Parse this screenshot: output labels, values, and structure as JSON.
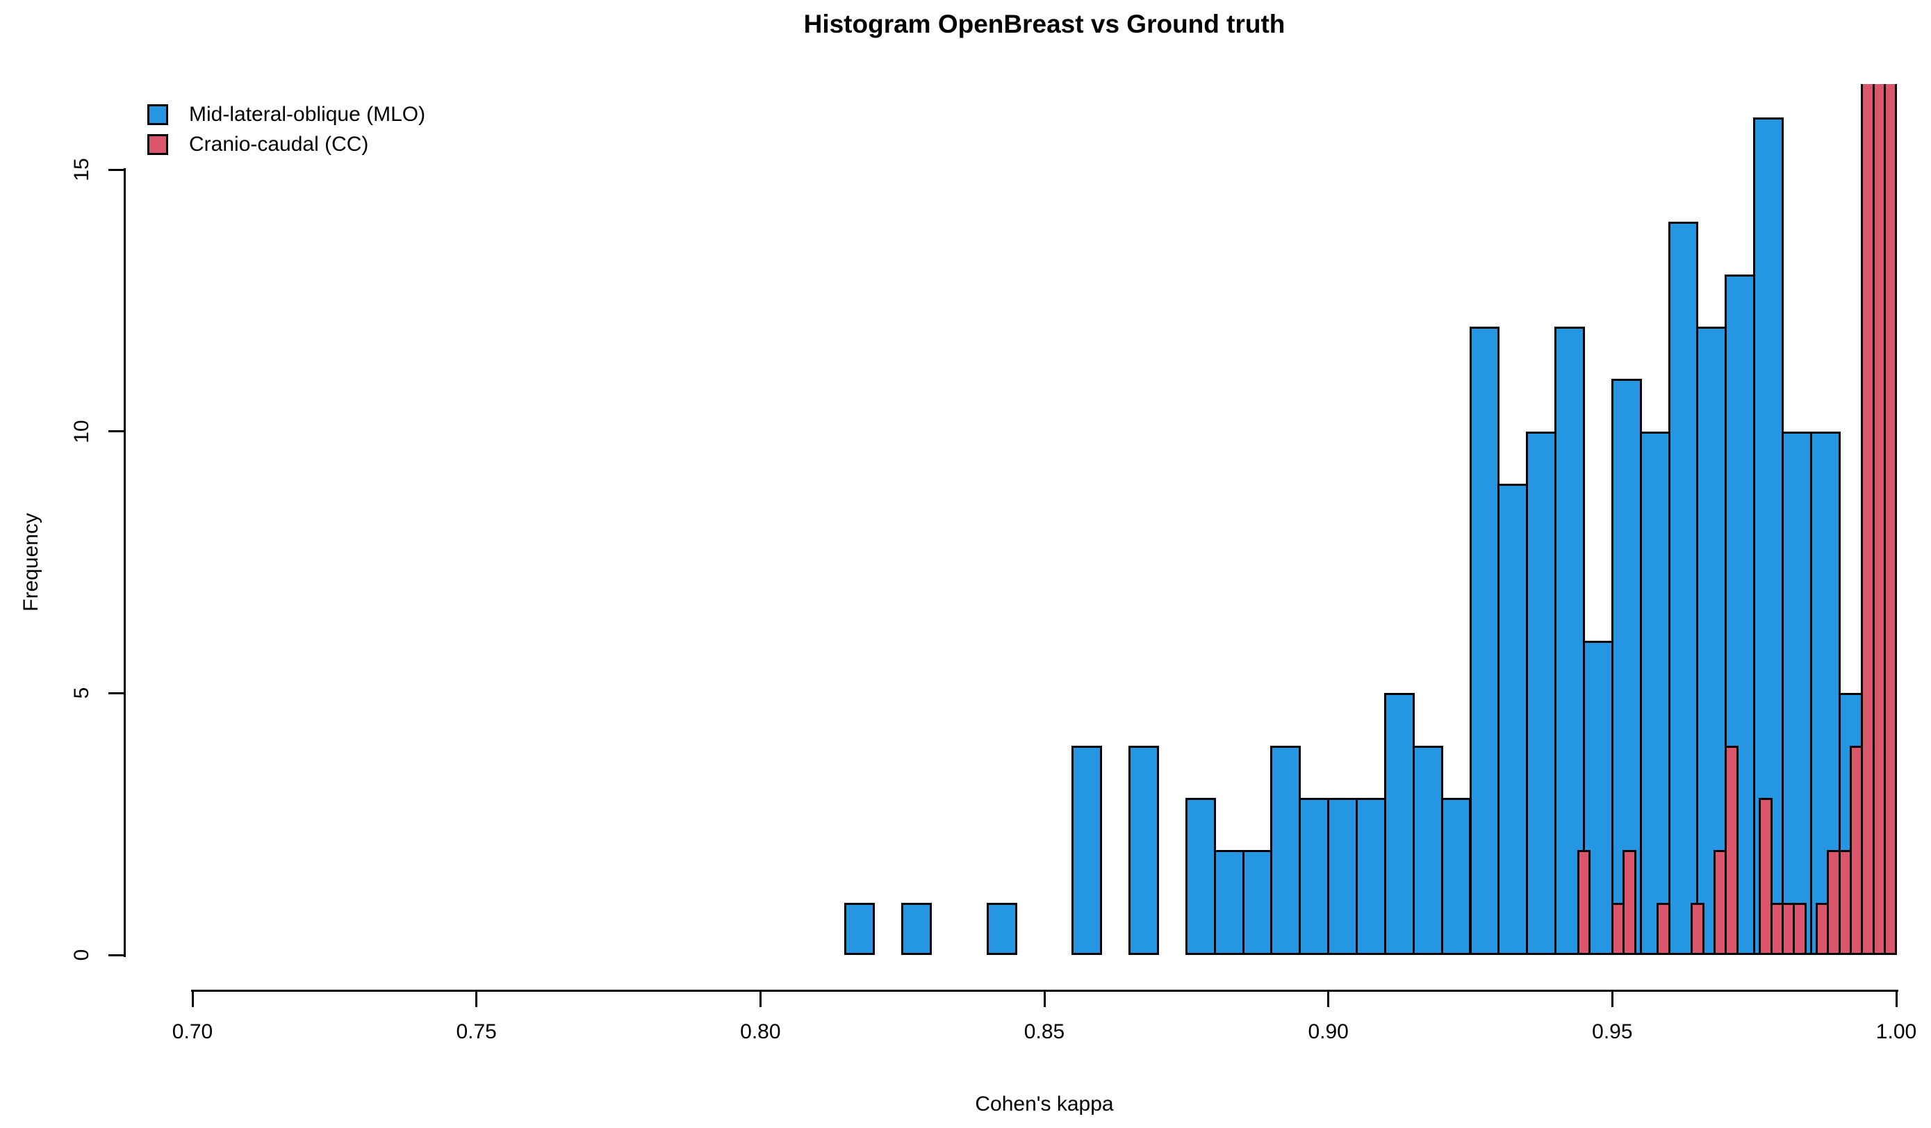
{
  "title": "Histogram OpenBreast vs Ground truth",
  "legend": {
    "items": [
      {
        "label": "Mid-lateral-oblique (MLO)",
        "color": "#2496E2"
      },
      {
        "label": "Cranio-caudal (CC)",
        "color": "#DC566B"
      }
    ]
  },
  "chart_data": {
    "type": "bar",
    "subtype": "histogram-overlay",
    "title": "Histogram OpenBreast vs Ground truth",
    "xlabel": "Cohen's kappa",
    "ylabel": "Frequency",
    "xlim": [
      0.7,
      1.0
    ],
    "ylim": [
      0,
      16.64
    ],
    "xticks": [
      "0.70",
      "0.75",
      "0.80",
      "0.85",
      "0.90",
      "0.95",
      "1.00"
    ],
    "xtick_values": [
      0.7,
      0.75,
      0.8,
      0.85,
      0.9,
      0.95,
      1.0
    ],
    "yticks": [
      "0",
      "5",
      "10",
      "15"
    ],
    "ytick_values": [
      0,
      5,
      10,
      15
    ],
    "grid": false,
    "legend_position": "top-left",
    "bar_outline_color": "#000000",
    "series": [
      {
        "name": "Mid-lateral-oblique (MLO)",
        "color": "#2496E2",
        "bin_width": 0.005,
        "bars": [
          {
            "x": 0.815,
            "f": 1
          },
          {
            "x": 0.825,
            "f": 1
          },
          {
            "x": 0.84,
            "f": 1
          },
          {
            "x": 0.855,
            "f": 4
          },
          {
            "x": 0.865,
            "f": 4
          },
          {
            "x": 0.875,
            "f": 3
          },
          {
            "x": 0.88,
            "f": 2
          },
          {
            "x": 0.885,
            "f": 2
          },
          {
            "x": 0.89,
            "f": 4
          },
          {
            "x": 0.895,
            "f": 3
          },
          {
            "x": 0.9,
            "f": 3
          },
          {
            "x": 0.905,
            "f": 3
          },
          {
            "x": 0.91,
            "f": 5
          },
          {
            "x": 0.915,
            "f": 4
          },
          {
            "x": 0.92,
            "f": 3
          },
          {
            "x": 0.925,
            "f": 12
          },
          {
            "x": 0.93,
            "f": 9
          },
          {
            "x": 0.935,
            "f": 10
          },
          {
            "x": 0.94,
            "f": 12
          },
          {
            "x": 0.945,
            "f": 6
          },
          {
            "x": 0.95,
            "f": 11
          },
          {
            "x": 0.955,
            "f": 10
          },
          {
            "x": 0.96,
            "f": 14
          },
          {
            "x": 0.965,
            "f": 12
          },
          {
            "x": 0.97,
            "f": 13
          },
          {
            "x": 0.975,
            "f": 16
          },
          {
            "x": 0.98,
            "f": 10
          },
          {
            "x": 0.985,
            "f": 10
          },
          {
            "x": 0.99,
            "f": 5
          }
        ]
      },
      {
        "name": "Cranio-caudal (CC)",
        "color": "#DC566B",
        "bin_width": 0.002,
        "bars": [
          {
            "x": 0.944,
            "f": 2
          },
          {
            "x": 0.95,
            "f": 1
          },
          {
            "x": 0.952,
            "f": 2
          },
          {
            "x": 0.958,
            "f": 1
          },
          {
            "x": 0.964,
            "f": 1
          },
          {
            "x": 0.968,
            "f": 2
          },
          {
            "x": 0.97,
            "f": 4
          },
          {
            "x": 0.976,
            "f": 3
          },
          {
            "x": 0.978,
            "f": 1
          },
          {
            "x": 0.98,
            "f": 1
          },
          {
            "x": 0.982,
            "f": 1
          },
          {
            "x": 0.986,
            "f": 1
          },
          {
            "x": 0.988,
            "f": 2
          },
          {
            "x": 0.99,
            "f": 2
          },
          {
            "x": 0.992,
            "f": 4
          },
          {
            "x": 0.994,
            "f": 16.64,
            "clipped": true
          },
          {
            "x": 0.996,
            "f": 16.64,
            "clipped": true
          },
          {
            "x": 0.998,
            "f": 16.64,
            "clipped": true
          }
        ]
      }
    ]
  }
}
